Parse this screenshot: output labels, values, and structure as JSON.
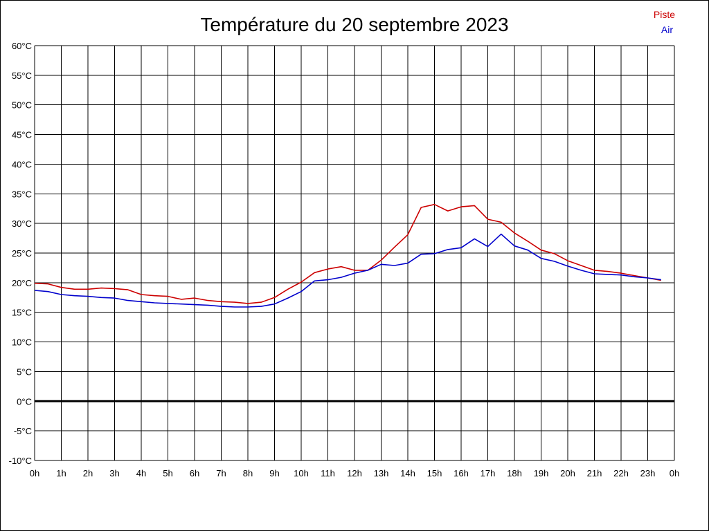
{
  "chart_data": {
    "type": "line",
    "title": "Température du 20 septembre 2023",
    "xlabel": "",
    "ylabel": "",
    "x_ticks": [
      "0h",
      "1h",
      "2h",
      "3h",
      "4h",
      "5h",
      "6h",
      "7h",
      "8h",
      "9h",
      "10h",
      "11h",
      "12h",
      "13h",
      "14h",
      "15h",
      "16h",
      "17h",
      "18h",
      "19h",
      "20h",
      "21h",
      "22h",
      "23h",
      "0h"
    ],
    "y_ticks": [
      "-10°C",
      "-5°C",
      "0°C",
      "5°C",
      "10°C",
      "15°C",
      "20°C",
      "25°C",
      "30°C",
      "35°C",
      "40°C",
      "45°C",
      "50°C",
      "55°C",
      "60°C"
    ],
    "xlim": [
      0,
      24
    ],
    "ylim": [
      -10,
      60
    ],
    "grid": true,
    "zero_line": true,
    "legend_position": "top-right",
    "x": [
      0,
      0.5,
      1,
      1.5,
      2,
      2.5,
      3,
      3.5,
      4,
      4.5,
      5,
      5.5,
      6,
      6.5,
      7,
      7.5,
      8,
      8.5,
      9,
      9.5,
      10,
      10.5,
      11,
      11.5,
      12,
      12.5,
      13,
      13.5,
      14,
      14.5,
      15,
      15.5,
      16,
      16.5,
      17,
      17.5,
      18,
      18.5,
      19,
      19.5,
      20,
      20.5,
      21,
      21.5,
      22,
      22.5,
      23,
      23.5
    ],
    "series": [
      {
        "name": "Piste",
        "color": "#cc0000",
        "values": [
          19.9,
          19.8,
          19.2,
          18.9,
          18.9,
          19.1,
          19.0,
          18.8,
          18.0,
          17.8,
          17.7,
          17.2,
          17.4,
          17.0,
          16.8,
          16.7,
          16.5,
          16.7,
          17.5,
          18.9,
          20.1,
          21.7,
          22.3,
          22.7,
          22.1,
          22.1,
          23.8,
          26.0,
          28.1,
          32.7,
          33.2,
          32.1,
          32.8,
          33.0,
          30.7,
          30.2,
          28.4,
          27.0,
          25.5,
          24.9,
          23.7,
          22.9,
          22.1,
          21.9,
          21.6,
          21.2,
          20.8,
          20.4
        ]
      },
      {
        "name": "Air",
        "color": "#0000cc",
        "values": [
          18.7,
          18.5,
          18.0,
          17.8,
          17.7,
          17.5,
          17.4,
          17.0,
          16.8,
          16.6,
          16.5,
          16.4,
          16.3,
          16.2,
          16.0,
          15.9,
          15.9,
          16.0,
          16.4,
          17.4,
          18.5,
          20.3,
          20.5,
          20.9,
          21.6,
          22.1,
          23.1,
          22.9,
          23.3,
          24.8,
          24.9,
          25.6,
          25.9,
          27.4,
          26.1,
          28.2,
          26.2,
          25.5,
          24.1,
          23.6,
          22.8,
          22.1,
          21.5,
          21.4,
          21.3,
          21.0,
          20.8,
          20.5
        ]
      }
    ]
  }
}
